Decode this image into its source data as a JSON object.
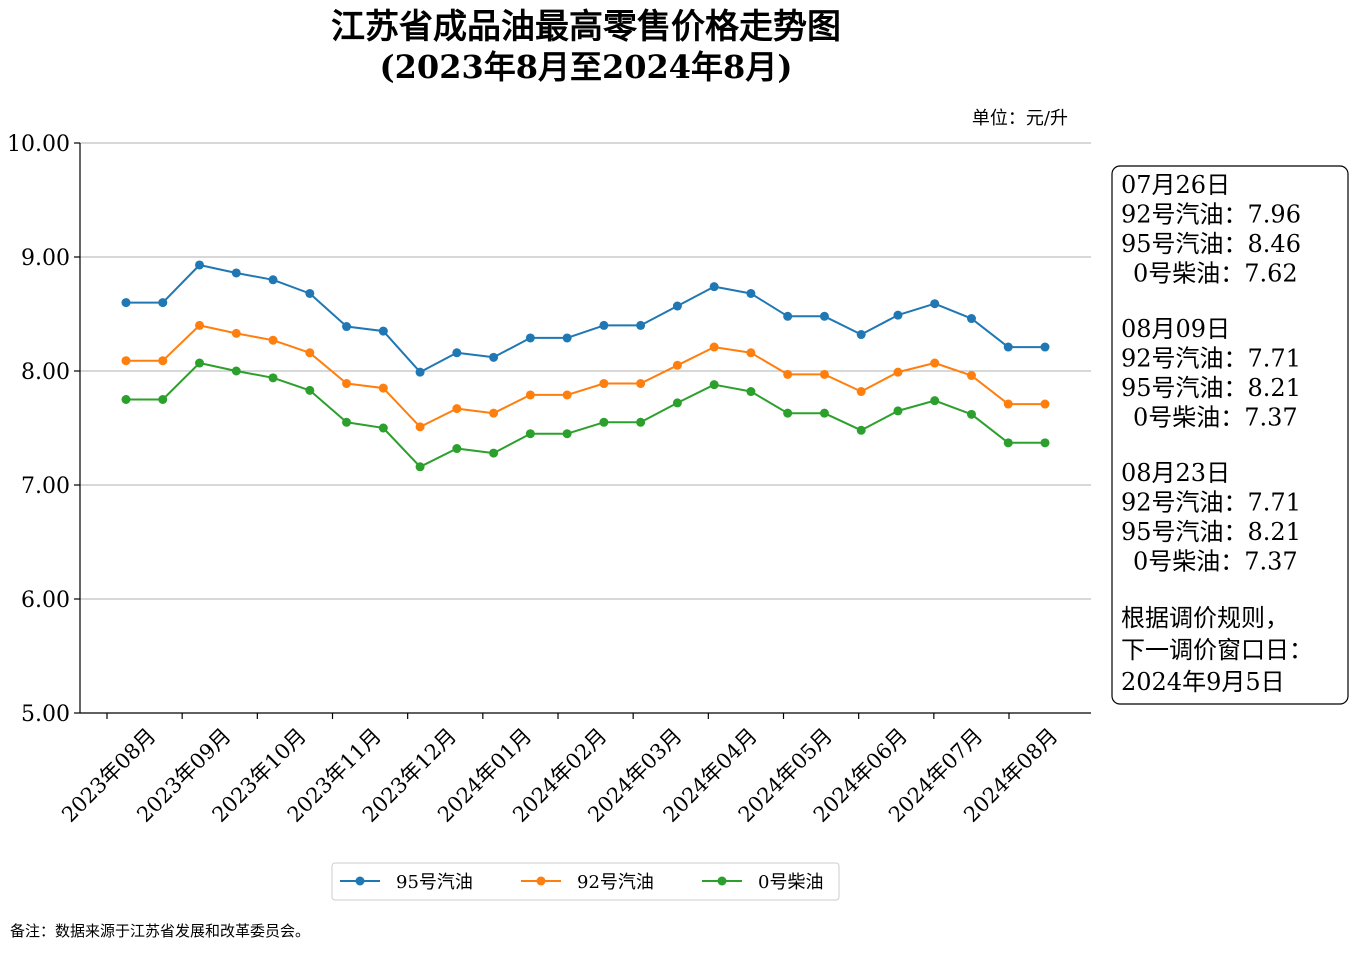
{
  "title": "江苏省成品油最高零售价格走势图",
  "subtitle": "(2023年8月至2024年8月)",
  "unit": "单位：元/升",
  "footnote": "备注：数据来源于江苏省发展和改革委员会。",
  "chart_data": {
    "type": "line",
    "title": "江苏省成品油最高零售价格走势图",
    "subtitle": "(2023年8月至2024年8月)",
    "xlabel": "",
    "ylabel": "",
    "unit": "元/升",
    "ylim": [
      5.0,
      10.0
    ],
    "yticks": [
      "5.00",
      "6.00",
      "7.00",
      "8.00",
      "9.00",
      "10.00"
    ],
    "xticks": [
      "2023年08月",
      "2023年09月",
      "2023年10月",
      "2023年11月",
      "2023年12月",
      "2024年01月",
      "2024年02月",
      "2024年03月",
      "2024年04月",
      "2024年05月",
      "2024年06月",
      "2024年07月",
      "2024年08月"
    ],
    "grid": "horizontal",
    "legend": "bottom-center",
    "series": [
      {
        "name": "95号汽油",
        "color": "#1f77b4",
        "values": [
          8.6,
          8.6,
          8.93,
          8.86,
          8.8,
          8.68,
          8.39,
          8.35,
          7.99,
          8.16,
          8.12,
          8.29,
          8.29,
          8.4,
          8.4,
          8.57,
          8.74,
          8.68,
          8.48,
          8.48,
          8.32,
          8.49,
          8.59,
          8.46,
          8.21,
          8.21
        ]
      },
      {
        "name": "92号汽油",
        "color": "#ff7f0e",
        "values": [
          8.09,
          8.09,
          8.4,
          8.33,
          8.27,
          8.16,
          7.89,
          7.85,
          7.51,
          7.67,
          7.63,
          7.79,
          7.79,
          7.89,
          7.89,
          8.05,
          8.21,
          8.16,
          7.97,
          7.97,
          7.82,
          7.99,
          8.07,
          7.96,
          7.71,
          7.71
        ]
      },
      {
        "name": "0号柴油",
        "color": "#2ca02c",
        "values": [
          7.75,
          7.75,
          8.07,
          8.0,
          7.94,
          7.83,
          7.55,
          7.5,
          7.16,
          7.32,
          7.28,
          7.45,
          7.45,
          7.55,
          7.55,
          7.72,
          7.88,
          7.82,
          7.63,
          7.63,
          7.48,
          7.65,
          7.74,
          7.62,
          7.37,
          7.37
        ]
      }
    ]
  },
  "infobox": {
    "groups": [
      {
        "date": "07月26日",
        "lines": [
          "92号汽油：7.96",
          "95号汽油：8.46",
          "0号柴油：7.62"
        ]
      },
      {
        "date": "08月09日",
        "lines": [
          "92号汽油：7.71",
          "95号汽油：8.21",
          "0号柴油：7.37"
        ]
      },
      {
        "date": "08月23日",
        "lines": [
          "92号汽油：7.71",
          "95号汽油：8.21",
          "0号柴油：7.37"
        ]
      }
    ],
    "note": [
      "根据调价规则，",
      "下一调价窗口日：",
      "2024年9月5日"
    ]
  }
}
